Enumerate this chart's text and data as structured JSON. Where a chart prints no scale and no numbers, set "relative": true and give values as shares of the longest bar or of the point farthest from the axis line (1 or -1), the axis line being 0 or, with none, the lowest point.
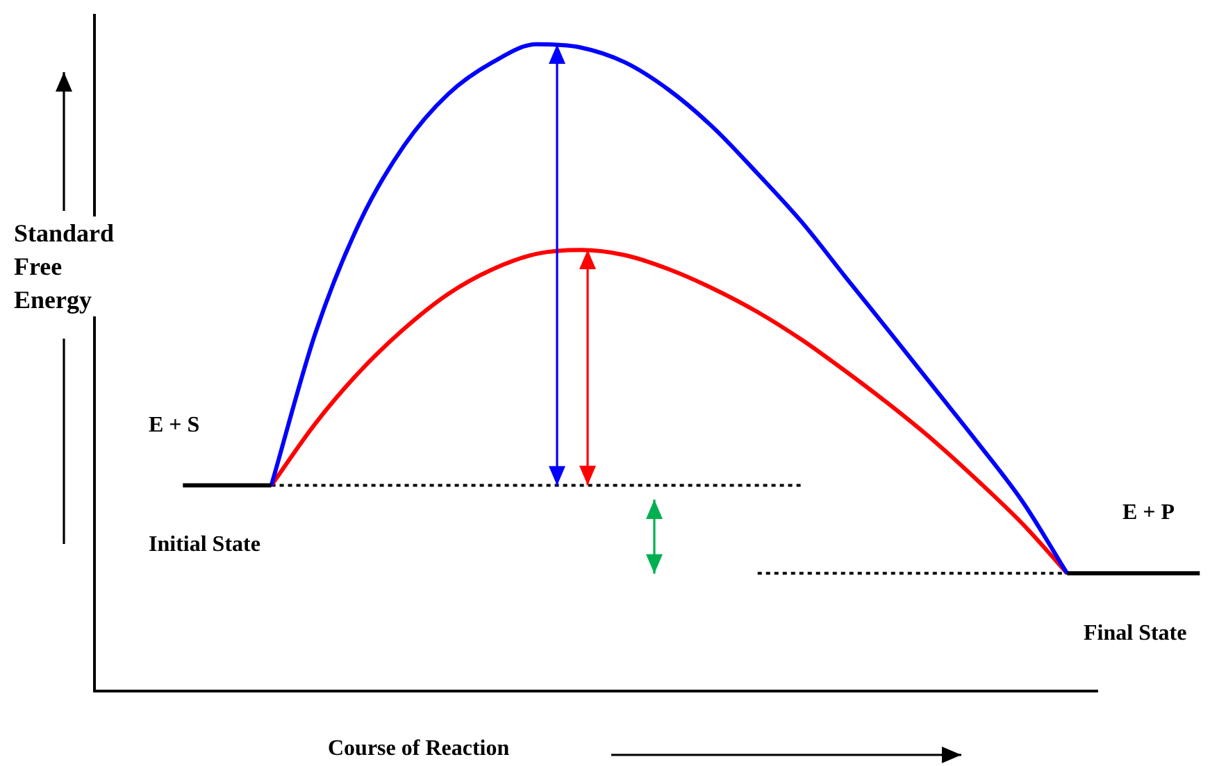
{
  "chart_data": {
    "type": "line",
    "relative": true,
    "xlabel": "Course of Reaction",
    "ylabel": "Standard Free Energy",
    "marker": "none",
    "categories": [
      null,
      null,
      null,
      null,
      null,
      null,
      null,
      null,
      null,
      null,
      null,
      null,
      null,
      null,
      null,
      null,
      null,
      null,
      null,
      null,
      null,
      null,
      null,
      null
    ],
    "series": [
      {
        "color": "#000000",
        "values": [
          0.318,
          0.318,
          0.318,
          null,
          null,
          null,
          null,
          null,
          null,
          null,
          null,
          null,
          null,
          null,
          null,
          null,
          null,
          null,
          null,
          null,
          null,
          null,
          null,
          null
        ]
      },
      {
        "color": "#000000",
        "values": [
          null,
          null,
          null,
          null,
          null,
          null,
          null,
          null,
          null,
          null,
          null,
          null,
          null,
          null,
          null,
          null,
          null,
          null,
          null,
          null,
          0.182,
          0.182,
          0.182,
          0.182
        ]
      },
      {
        "color": "#0000ff",
        "values": [
          null,
          null,
          0.318,
          0.554,
          0.725,
          0.843,
          0.923,
          0.972,
          1,
          0.995,
          0.972,
          0.929,
          0.871,
          0.8,
          0.725,
          0.639,
          0.554,
          0.468,
          0.382,
          0.292,
          0.182,
          null,
          null,
          null
        ]
      },
      {
        "color": "#ff0000",
        "values": [
          null,
          null,
          0.318,
          0.414,
          0.494,
          0.56,
          0.614,
          0.652,
          0.676,
          0.682,
          0.674,
          0.652,
          0.622,
          0.586,
          0.543,
          0.494,
          0.442,
          0.386,
          0.324,
          0.258,
          0.182,
          null,
          null,
          null
        ]
      },
      {
        "color": "#000000",
        "line_style": "dotted",
        "values": [
          null,
          null,
          0.318,
          0.318,
          0.318,
          0.318,
          0.318,
          0.318,
          0.318,
          0.318,
          0.318,
          0.318,
          0.318,
          0.318,
          0.318,
          null,
          null,
          null,
          null,
          null,
          null,
          null,
          null,
          null
        ]
      },
      {
        "color": "#000000",
        "line_style": "dotted",
        "values": [
          null,
          null,
          null,
          null,
          null,
          null,
          null,
          null,
          null,
          null,
          null,
          null,
          null,
          0.182,
          0.182,
          0.182,
          0.182,
          0.182,
          0.182,
          0.182,
          0.182,
          null,
          null,
          null
        ]
      }
    ],
    "annotations": [
      "E + S",
      "Initial State",
      "E + P",
      "Final State"
    ]
  }
}
